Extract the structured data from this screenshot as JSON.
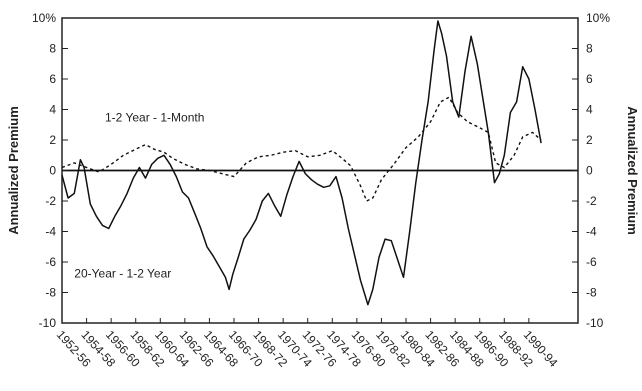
{
  "chart_data": {
    "type": "line",
    "ylabel_left": "Annualized Premium",
    "ylabel_right": "Annualized Premium",
    "ylim": [
      -10,
      10
    ],
    "yticks": [
      {
        "v": 10,
        "label": "10%"
      },
      {
        "v": 8,
        "label": "8"
      },
      {
        "v": 6,
        "label": "6"
      },
      {
        "v": 4,
        "label": "4"
      },
      {
        "v": 2,
        "label": "2"
      },
      {
        "v": 0,
        "label": "0"
      },
      {
        "v": -2,
        "label": "-2"
      },
      {
        "v": -4,
        "label": "-4"
      },
      {
        "v": -6,
        "label": "-6"
      },
      {
        "v": -8,
        "label": "-8"
      },
      {
        "v": -10,
        "label": "-10"
      }
    ],
    "xlim": [
      1952,
      1994
    ],
    "xticks": [
      {
        "v": 1952,
        "label": "1952-56"
      },
      {
        "v": 1954,
        "label": "1954-58"
      },
      {
        "v": 1956,
        "label": "1956-60"
      },
      {
        "v": 1958,
        "label": "1958-62"
      },
      {
        "v": 1960,
        "label": "1960-64"
      },
      {
        "v": 1962,
        "label": "1962-66"
      },
      {
        "v": 1964,
        "label": "1964-68"
      },
      {
        "v": 1966,
        "label": "1966-70"
      },
      {
        "v": 1968,
        "label": "1968-72"
      },
      {
        "v": 1970,
        "label": "1970-74"
      },
      {
        "v": 1972,
        "label": "1972-76"
      },
      {
        "v": 1974,
        "label": "1974-78"
      },
      {
        "v": 1976,
        "label": "1976-80"
      },
      {
        "v": 1978,
        "label": "1978-82"
      },
      {
        "v": 1980,
        "label": "1980-84"
      },
      {
        "v": 1982,
        "label": "1982-86"
      },
      {
        "v": 1984,
        "label": "1984-88"
      },
      {
        "v": 1986,
        "label": "1986-90"
      },
      {
        "v": 1988,
        "label": "1988-92"
      },
      {
        "v": 1990,
        "label": "1990-94"
      }
    ],
    "annotations": [
      {
        "text": "1-2 Year - 1-Month",
        "x": 1955.5,
        "y": 3.2
      },
      {
        "text": "20-Year - 1-2 Year",
        "x": 1953.0,
        "y": -7.0
      }
    ],
    "series": [
      {
        "style": "solid",
        "x": [
          1952.0,
          1952.5,
          1953.0,
          1953.5,
          1953.8,
          1954.3,
          1954.8,
          1955.3,
          1955.8,
          1956.3,
          1956.8,
          1957.3,
          1957.8,
          1958.3,
          1958.8,
          1959.3,
          1959.8,
          1960.3,
          1960.8,
          1961.3,
          1961.8,
          1962.3,
          1962.8,
          1963.3,
          1963.8,
          1964.3,
          1964.8,
          1965.3,
          1965.6,
          1965.9,
          1966.3,
          1966.8,
          1967.3,
          1967.8,
          1968.3,
          1968.8,
          1969.3,
          1969.8,
          1970.3,
          1970.8,
          1971.3,
          1971.8,
          1972.3,
          1972.8,
          1973.3,
          1973.8,
          1974.3,
          1974.8,
          1975.3,
          1975.8,
          1976.3,
          1976.6,
          1976.9,
          1977.3,
          1977.8,
          1978.3,
          1978.8,
          1979.3,
          1979.8,
          1980.3,
          1980.8,
          1981.3,
          1981.8,
          1982.3,
          1982.6,
          1982.9,
          1983.3,
          1983.8,
          1984.3,
          1984.8,
          1985.3,
          1985.8,
          1986.3,
          1986.7,
          1987.2,
          1987.6,
          1988.0,
          1988.5,
          1989.0,
          1989.5,
          1990.0,
          1990.5,
          1991.0
        ],
        "y": [
          -0.3,
          -1.8,
          -1.5,
          0.7,
          0.2,
          -2.2,
          -3.0,
          -3.6,
          -3.8,
          -3.0,
          -2.3,
          -1.5,
          -0.5,
          0.2,
          -0.5,
          0.4,
          0.8,
          1.0,
          0.4,
          -0.4,
          -1.4,
          -1.8,
          -2.8,
          -3.8,
          -5.0,
          -5.6,
          -6.3,
          -7.0,
          -7.8,
          -6.8,
          -5.8,
          -4.5,
          -3.9,
          -3.2,
          -2.0,
          -1.5,
          -2.3,
          -3.0,
          -1.6,
          -0.4,
          0.6,
          -0.2,
          -0.6,
          -0.9,
          -1.1,
          -1.0,
          -0.4,
          -1.8,
          -3.8,
          -5.5,
          -7.2,
          -8.0,
          -8.8,
          -7.8,
          -5.7,
          -4.5,
          -4.6,
          -5.8,
          -7.0,
          -4.0,
          -0.8,
          2.0,
          4.5,
          8.0,
          9.8,
          9.0,
          7.5,
          4.5,
          3.5,
          6.5,
          8.8,
          7.0,
          4.5,
          2.5,
          -0.8,
          -0.2,
          1.0,
          3.8,
          4.5,
          6.8,
          6.0,
          4.0,
          1.8
        ]
      },
      {
        "style": "dashed",
        "x": [
          1952.0,
          1953.0,
          1954.0,
          1955.0,
          1956.0,
          1957.0,
          1958.0,
          1958.8,
          1959.5,
          1960.3,
          1961.0,
          1962.0,
          1963.0,
          1964.0,
          1965.0,
          1966.0,
          1967.0,
          1968.0,
          1969.0,
          1970.0,
          1971.0,
          1972.0,
          1973.0,
          1974.0,
          1974.8,
          1975.5,
          1976.3,
          1976.8,
          1977.3,
          1978.0,
          1979.0,
          1980.0,
          1981.0,
          1982.0,
          1982.8,
          1983.5,
          1984.2,
          1985.0,
          1986.0,
          1986.7,
          1987.3,
          1988.0,
          1988.8,
          1989.5,
          1990.3,
          1991.0
        ],
        "y": [
          0.2,
          0.5,
          0.2,
          -0.1,
          0.4,
          1.0,
          1.4,
          1.7,
          1.4,
          1.2,
          0.8,
          0.4,
          0.1,
          0.0,
          -0.2,
          -0.4,
          0.5,
          0.9,
          1.0,
          1.2,
          1.3,
          0.9,
          1.0,
          1.3,
          0.8,
          0.3,
          -1.0,
          -2.0,
          -1.8,
          -0.6,
          0.4,
          1.5,
          2.2,
          3.2,
          4.5,
          4.8,
          3.8,
          3.2,
          2.8,
          2.5,
          0.5,
          0.2,
          1.0,
          2.2,
          2.5,
          2.0
        ]
      }
    ]
  }
}
